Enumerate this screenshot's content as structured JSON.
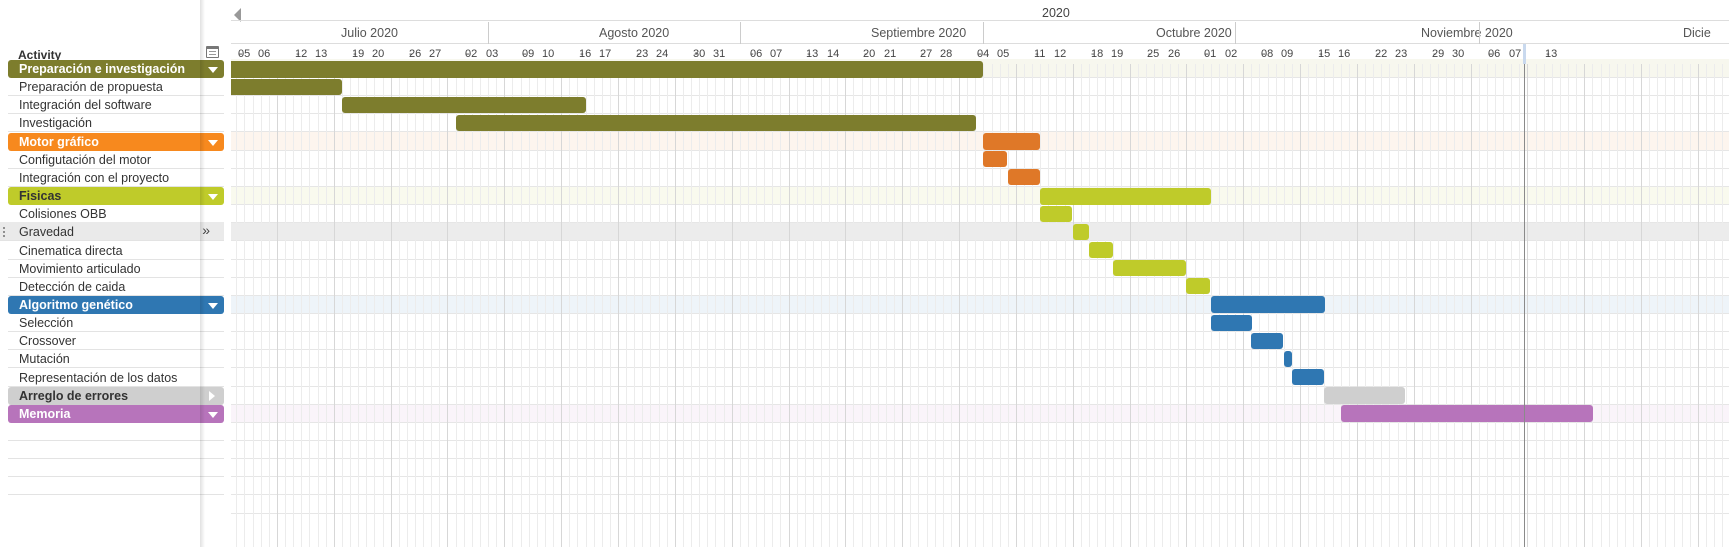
{
  "year": "2020",
  "header": {
    "activity_label": "Activity"
  },
  "months": [
    {
      "label": "Julio 2020",
      "x": 110
    },
    {
      "label": "Agosto 2020",
      "x": 368
    },
    {
      "label": "Septiembre 2020",
      "x": 640
    },
    {
      "label": "Octubre 2020",
      "x": 925
    },
    {
      "label": "Noviembre 2020",
      "x": 1190
    },
    {
      "label": "Dicie",
      "x": 1452
    }
  ],
  "day_labels": [
    "-",
    "05",
    "06",
    "-",
    "12",
    "13",
    "-",
    "19",
    "20",
    "-",
    "26",
    "27",
    "-",
    "02",
    "03",
    "-",
    "09",
    "10",
    "-",
    "16",
    "17",
    "-",
    "23",
    "24",
    "-",
    "30",
    "31",
    "-",
    "06",
    "07",
    "-",
    "13",
    "14",
    "-",
    "20",
    "21",
    "-",
    "27",
    "28",
    "-",
    "04",
    "05",
    "-",
    "11",
    "12",
    "-",
    "18",
    "19",
    "-",
    "25",
    "26",
    "-",
    "01",
    "02",
    "-",
    "08",
    "09",
    "-",
    "15",
    "16",
    "-",
    "22",
    "23",
    "-",
    "29",
    "30",
    "-",
    "06",
    "07",
    "-",
    "13"
  ],
  "colors": {
    "olive": "#7d7d2d",
    "orange": "#f7891e",
    "orange_bar": "#df7828",
    "lime": "#bfcb2a",
    "blue": "#2f77b2",
    "grey": "#cfcfcf",
    "purple": "#b774bb"
  },
  "rows": [
    {
      "label": "Preparación e investigación",
      "type": "group",
      "color": "olive",
      "band": "#f7f7ee",
      "caret": "down"
    },
    {
      "label": "Preparación de propuesta",
      "type": "task"
    },
    {
      "label": "Integración del software",
      "type": "task"
    },
    {
      "label": "Investigación",
      "type": "task"
    },
    {
      "label": "Motor gráfico",
      "type": "group",
      "color": "orange",
      "band": "#fdf5ee",
      "caret": "down"
    },
    {
      "label": "Configutación del motor",
      "type": "task"
    },
    {
      "label": "Integración con el proyecto",
      "type": "task"
    },
    {
      "label": "Fisicas",
      "type": "group",
      "color": "lime",
      "band": "#f9faee",
      "caret": "down",
      "light": true
    },
    {
      "label": "Colisiones OBB",
      "type": "task"
    },
    {
      "label": "Gravedad",
      "type": "task",
      "highlight": true
    },
    {
      "label": "Cinematica directa",
      "type": "task"
    },
    {
      "label": "Movimiento articulado",
      "type": "task"
    },
    {
      "label": "Detección de caida",
      "type": "task"
    },
    {
      "label": "Algoritmo genético",
      "type": "group",
      "color": "blue",
      "band": "#eef4f9",
      "caret": "down"
    },
    {
      "label": "Selección",
      "type": "task"
    },
    {
      "label": "Crossover",
      "type": "task"
    },
    {
      "label": "Mutación",
      "type": "task"
    },
    {
      "label": "Representación de los datos",
      "type": "task"
    },
    {
      "label": "Arreglo de errores",
      "type": "group",
      "color": "grey",
      "band": "#ffffff",
      "caret": "right",
      "light": true
    },
    {
      "label": "Memoria",
      "type": "group",
      "color": "purple",
      "band": "#faf4fa",
      "caret": "down"
    }
  ],
  "bars": [
    {
      "row": 0,
      "start": "2020-06-30",
      "end": "2020-10-01",
      "color": "olive"
    },
    {
      "row": 1,
      "start": "2020-06-30",
      "end": "2020-07-14",
      "color": "olive"
    },
    {
      "row": 2,
      "start": "2020-07-14",
      "end": "2020-08-13",
      "color": "olive"
    },
    {
      "row": 3,
      "start": "2020-07-28",
      "end": "2020-09-30",
      "color": "olive"
    },
    {
      "row": 4,
      "start": "2020-10-01",
      "end": "2020-10-08",
      "color": "orange_bar"
    },
    {
      "row": 5,
      "start": "2020-10-01",
      "end": "2020-10-04",
      "color": "orange_bar"
    },
    {
      "row": 6,
      "start": "2020-10-04",
      "end": "2020-10-08",
      "color": "orange_bar"
    },
    {
      "row": 7,
      "start": "2020-10-08",
      "end": "2020-10-29",
      "color": "lime"
    },
    {
      "row": 8,
      "start": "2020-10-08",
      "end": "2020-10-12",
      "color": "lime"
    },
    {
      "row": 9,
      "start": "2020-10-12",
      "end": "2020-10-14",
      "color": "lime"
    },
    {
      "row": 10,
      "start": "2020-10-14",
      "end": "2020-10-17",
      "color": "lime"
    },
    {
      "row": 11,
      "start": "2020-10-17",
      "end": "2020-10-26",
      "color": "lime"
    },
    {
      "row": 12,
      "start": "2020-10-26",
      "end": "2020-10-29",
      "color": "lime"
    },
    {
      "row": 13,
      "start": "2020-10-29",
      "end": "2020-11-12",
      "color": "blue"
    },
    {
      "row": 14,
      "start": "2020-10-29",
      "end": "2020-11-03",
      "color": "blue"
    },
    {
      "row": 15,
      "start": "2020-11-03",
      "end": "2020-11-07",
      "color": "blue"
    },
    {
      "row": 16,
      "start": "2020-11-07",
      "end": "2020-11-08",
      "color": "blue"
    },
    {
      "row": 17,
      "start": "2020-11-08",
      "end": "2020-11-12",
      "color": "blue"
    },
    {
      "row": 18,
      "start": "2020-11-12",
      "end": "2020-11-22",
      "color": "grey"
    },
    {
      "row": 19,
      "start": "2020-11-14",
      "end": "2020-12-15",
      "color": "purple"
    }
  ]
}
